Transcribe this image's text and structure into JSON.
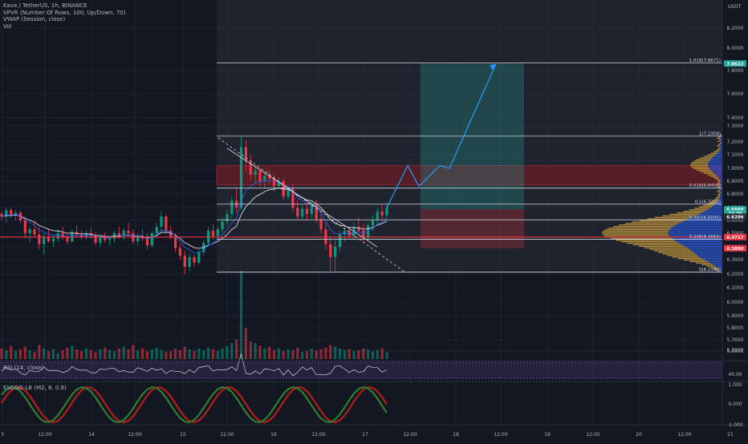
{
  "legend": {
    "symbol": "Kava / TetherUS, 1h, BINANCE",
    "vpvr": "VPVR (Number Of Rows, 100, Up/Down, 70)",
    "vwap": "VWAP (Session, close)",
    "vol": "Vol"
  },
  "rsi_label": "RSI (14, close)",
  "escgo_label": "ESCGO-LB (M2, 8, 0.8)",
  "chart_data": {
    "type": "candlestick",
    "currency": "USDT",
    "price_axis_ticks": [
      "8.2000",
      "8.0000",
      "7.8000",
      "7.6000",
      "7.4000",
      "7.3000",
      "7.2000",
      "7.1000",
      "7.0000",
      "6.9000",
      "6.8000",
      "6.7000",
      "6.6000",
      "6.5000",
      "6.4000",
      "6.3000",
      "6.2000",
      "6.1000",
      "6.0000",
      "5.9000",
      "5.8000",
      "5.7600",
      "5.7000",
      "5.6800"
    ],
    "rsi_ticks": [
      "40.00"
    ],
    "escgo_ticks": [
      "1.000",
      "0.000",
      "-1.000"
    ],
    "time_ticks": [
      "3",
      "12:00",
      "14",
      "12:00",
      "15",
      "12:00",
      "16",
      "12:00",
      "17",
      "12:00",
      "18",
      "12:00",
      "19",
      "12:00",
      "20",
      "12:00",
      "21"
    ],
    "fib_levels": [
      {
        "label": "1.618(7.8671)",
        "price": 7.8671
      },
      {
        "label": "1(7.2358)",
        "price": 7.2358
      },
      {
        "label": "0.618(6.8456)",
        "price": 6.8456
      },
      {
        "label": "0.5(6.7250)",
        "price": 6.725
      },
      {
        "label": "0.382(6.6045)",
        "price": 6.6045
      },
      {
        "label": "0.236(6.4554)",
        "price": 6.4554
      },
      {
        "label": "0(6.2143)",
        "price": 6.2143
      }
    ],
    "price_tags": [
      {
        "label": "7.8622",
        "price": 7.8622,
        "color": "#26a69a"
      },
      {
        "label": "6.6868",
        "price": 6.6868,
        "color": "#26a69a"
      },
      {
        "label": "24.36",
        "price": 6.655,
        "color": "#26a69a"
      },
      {
        "label": "6.6286",
        "price": 6.6286,
        "color": "#2a2e39"
      },
      {
        "label": "6.4717",
        "price": 6.4717,
        "color": "#f23645"
      },
      {
        "label": "6.3890",
        "price": 6.389,
        "color": "#f23645"
      }
    ],
    "horizontal_line_price": 6.4717,
    "resistance_zone": [
      6.87,
      7.02
    ],
    "candles_start_x": 2,
    "candles": [
      [
        6.65,
        6.67,
        6.6,
        6.63
      ],
      [
        6.63,
        6.7,
        6.58,
        6.68
      ],
      [
        6.68,
        6.7,
        6.62,
        6.64
      ],
      [
        6.64,
        6.68,
        6.6,
        6.66
      ],
      [
        6.66,
        6.68,
        6.58,
        6.6
      ],
      [
        6.6,
        6.63,
        6.46,
        6.5
      ],
      [
        6.5,
        6.56,
        6.43,
        6.53
      ],
      [
        6.53,
        6.6,
        6.47,
        6.49
      ],
      [
        6.49,
        6.55,
        6.38,
        6.42
      ],
      [
        6.42,
        6.5,
        6.34,
        6.47
      ],
      [
        6.47,
        6.53,
        6.43,
        6.44
      ],
      [
        6.44,
        6.49,
        6.4,
        6.46
      ],
      [
        6.46,
        6.53,
        6.44,
        6.5
      ],
      [
        6.5,
        6.55,
        6.45,
        6.47
      ],
      [
        6.47,
        6.5,
        6.42,
        6.44
      ],
      [
        6.44,
        6.53,
        6.43,
        6.51
      ],
      [
        6.51,
        6.56,
        6.47,
        6.49
      ],
      [
        6.49,
        6.52,
        6.45,
        6.47
      ],
      [
        6.47,
        6.52,
        6.45,
        6.5
      ],
      [
        6.5,
        6.54,
        6.46,
        6.48
      ],
      [
        6.48,
        6.51,
        6.41,
        6.43
      ],
      [
        6.43,
        6.49,
        6.4,
        6.47
      ],
      [
        6.47,
        6.51,
        6.43,
        6.45
      ],
      [
        6.45,
        6.48,
        6.41,
        6.46
      ],
      [
        6.46,
        6.52,
        6.43,
        6.5
      ],
      [
        6.5,
        6.55,
        6.46,
        6.48
      ],
      [
        6.48,
        6.54,
        6.45,
        6.52
      ],
      [
        6.52,
        6.58,
        6.48,
        6.5
      ],
      [
        6.5,
        6.53,
        6.42,
        6.44
      ],
      [
        6.44,
        6.5,
        6.41,
        6.48
      ],
      [
        6.48,
        6.53,
        6.44,
        6.46
      ],
      [
        6.46,
        6.5,
        6.38,
        6.41
      ],
      [
        6.41,
        6.52,
        6.4,
        6.5
      ],
      [
        6.5,
        6.58,
        6.47,
        6.55
      ],
      [
        6.55,
        6.67,
        6.5,
        6.63
      ],
      [
        6.63,
        6.65,
        6.5,
        6.52
      ],
      [
        6.52,
        6.56,
        6.45,
        6.47
      ],
      [
        6.47,
        6.5,
        6.36,
        6.39
      ],
      [
        6.39,
        6.42,
        6.3,
        6.33
      ],
      [
        6.33,
        6.37,
        6.2,
        6.25
      ],
      [
        6.25,
        6.35,
        6.22,
        6.32
      ],
      [
        6.32,
        6.34,
        6.25,
        6.28
      ],
      [
        6.28,
        6.38,
        6.27,
        6.36
      ],
      [
        6.36,
        6.45,
        6.33,
        6.43
      ],
      [
        6.43,
        6.55,
        6.41,
        6.52
      ],
      [
        6.52,
        6.57,
        6.45,
        6.48
      ],
      [
        6.48,
        6.55,
        6.46,
        6.53
      ],
      [
        6.53,
        6.62,
        6.5,
        6.59
      ],
      [
        6.59,
        6.68,
        6.56,
        6.65
      ],
      [
        6.65,
        6.78,
        6.62,
        6.75
      ],
      [
        6.75,
        6.85,
        6.66,
        6.7
      ],
      [
        6.7,
        7.24,
        6.68,
        7.16
      ],
      [
        7.16,
        7.21,
        6.98,
        7.05
      ],
      [
        7.05,
        7.1,
        6.9,
        6.95
      ],
      [
        6.95,
        7.02,
        6.88,
        6.98
      ],
      [
        6.98,
        7.0,
        6.86,
        6.9
      ],
      [
        6.9,
        6.97,
        6.84,
        6.94
      ],
      [
        6.94,
        6.99,
        6.88,
        6.92
      ],
      [
        6.92,
        6.95,
        6.82,
        6.86
      ],
      [
        6.86,
        6.93,
        6.84,
        6.9
      ],
      [
        6.9,
        6.92,
        6.75,
        6.78
      ],
      [
        6.78,
        6.86,
        6.76,
        6.84
      ],
      [
        6.84,
        6.88,
        6.66,
        6.7
      ],
      [
        6.7,
        6.76,
        6.6,
        6.63
      ],
      [
        6.63,
        6.72,
        6.61,
        6.69
      ],
      [
        6.69,
        6.74,
        6.6,
        6.65
      ],
      [
        6.65,
        6.75,
        6.62,
        6.72
      ],
      [
        6.72,
        6.76,
        6.58,
        6.61
      ],
      [
        6.61,
        6.65,
        6.5,
        6.53
      ],
      [
        6.53,
        6.58,
        6.38,
        6.42
      ],
      [
        6.42,
        6.48,
        6.22,
        6.32
      ],
      [
        6.32,
        6.45,
        6.21,
        6.4
      ],
      [
        6.4,
        6.52,
        6.36,
        6.49
      ],
      [
        6.49,
        6.56,
        6.44,
        6.52
      ],
      [
        6.52,
        6.55,
        6.46,
        6.48
      ],
      [
        6.48,
        6.58,
        6.45,
        6.55
      ],
      [
        6.55,
        6.62,
        6.5,
        6.52
      ],
      [
        6.52,
        6.57,
        6.44,
        6.47
      ],
      [
        6.47,
        6.58,
        6.45,
        6.56
      ],
      [
        6.56,
        6.64,
        6.52,
        6.6
      ],
      [
        6.6,
        6.7,
        6.57,
        6.67
      ],
      [
        6.67,
        6.72,
        6.6,
        6.64
      ],
      [
        6.64,
        6.74,
        6.62,
        6.7
      ]
    ],
    "volume": [
      0.12,
      0.1,
      0.15,
      0.09,
      0.11,
      0.14,
      0.1,
      0.08,
      0.16,
      0.12,
      0.09,
      0.11,
      0.07,
      0.1,
      0.13,
      0.15,
      0.11,
      0.09,
      0.12,
      0.1,
      0.08,
      0.11,
      0.13,
      0.1,
      0.09,
      0.12,
      0.14,
      0.11,
      0.16,
      0.1,
      0.12,
      0.09,
      0.11,
      0.13,
      0.1,
      0.08,
      0.09,
      0.12,
      0.1,
      0.14,
      0.11,
      0.09,
      0.12,
      0.1,
      0.13,
      0.11,
      0.09,
      0.12,
      0.15,
      0.18,
      0.22,
      1.0,
      0.35,
      0.2,
      0.18,
      0.15,
      0.12,
      0.14,
      0.1,
      0.12,
      0.09,
      0.11,
      0.1,
      0.13,
      0.08,
      0.09,
      0.12,
      0.1,
      0.11,
      0.13,
      0.16,
      0.14,
      0.12,
      0.1,
      0.11,
      0.09,
      0.1,
      0.12,
      0.11,
      0.09,
      0.1,
      0.12,
      0.08
    ],
    "future_path": [
      [
        6.7,
        6.7
      ],
      [
        7.02,
        7.02
      ],
      [
        6.86,
        6.86
      ],
      [
        7.02,
        7.02
      ],
      [
        7.0,
        7.0
      ],
      [
        7.86,
        7.86
      ]
    ]
  }
}
